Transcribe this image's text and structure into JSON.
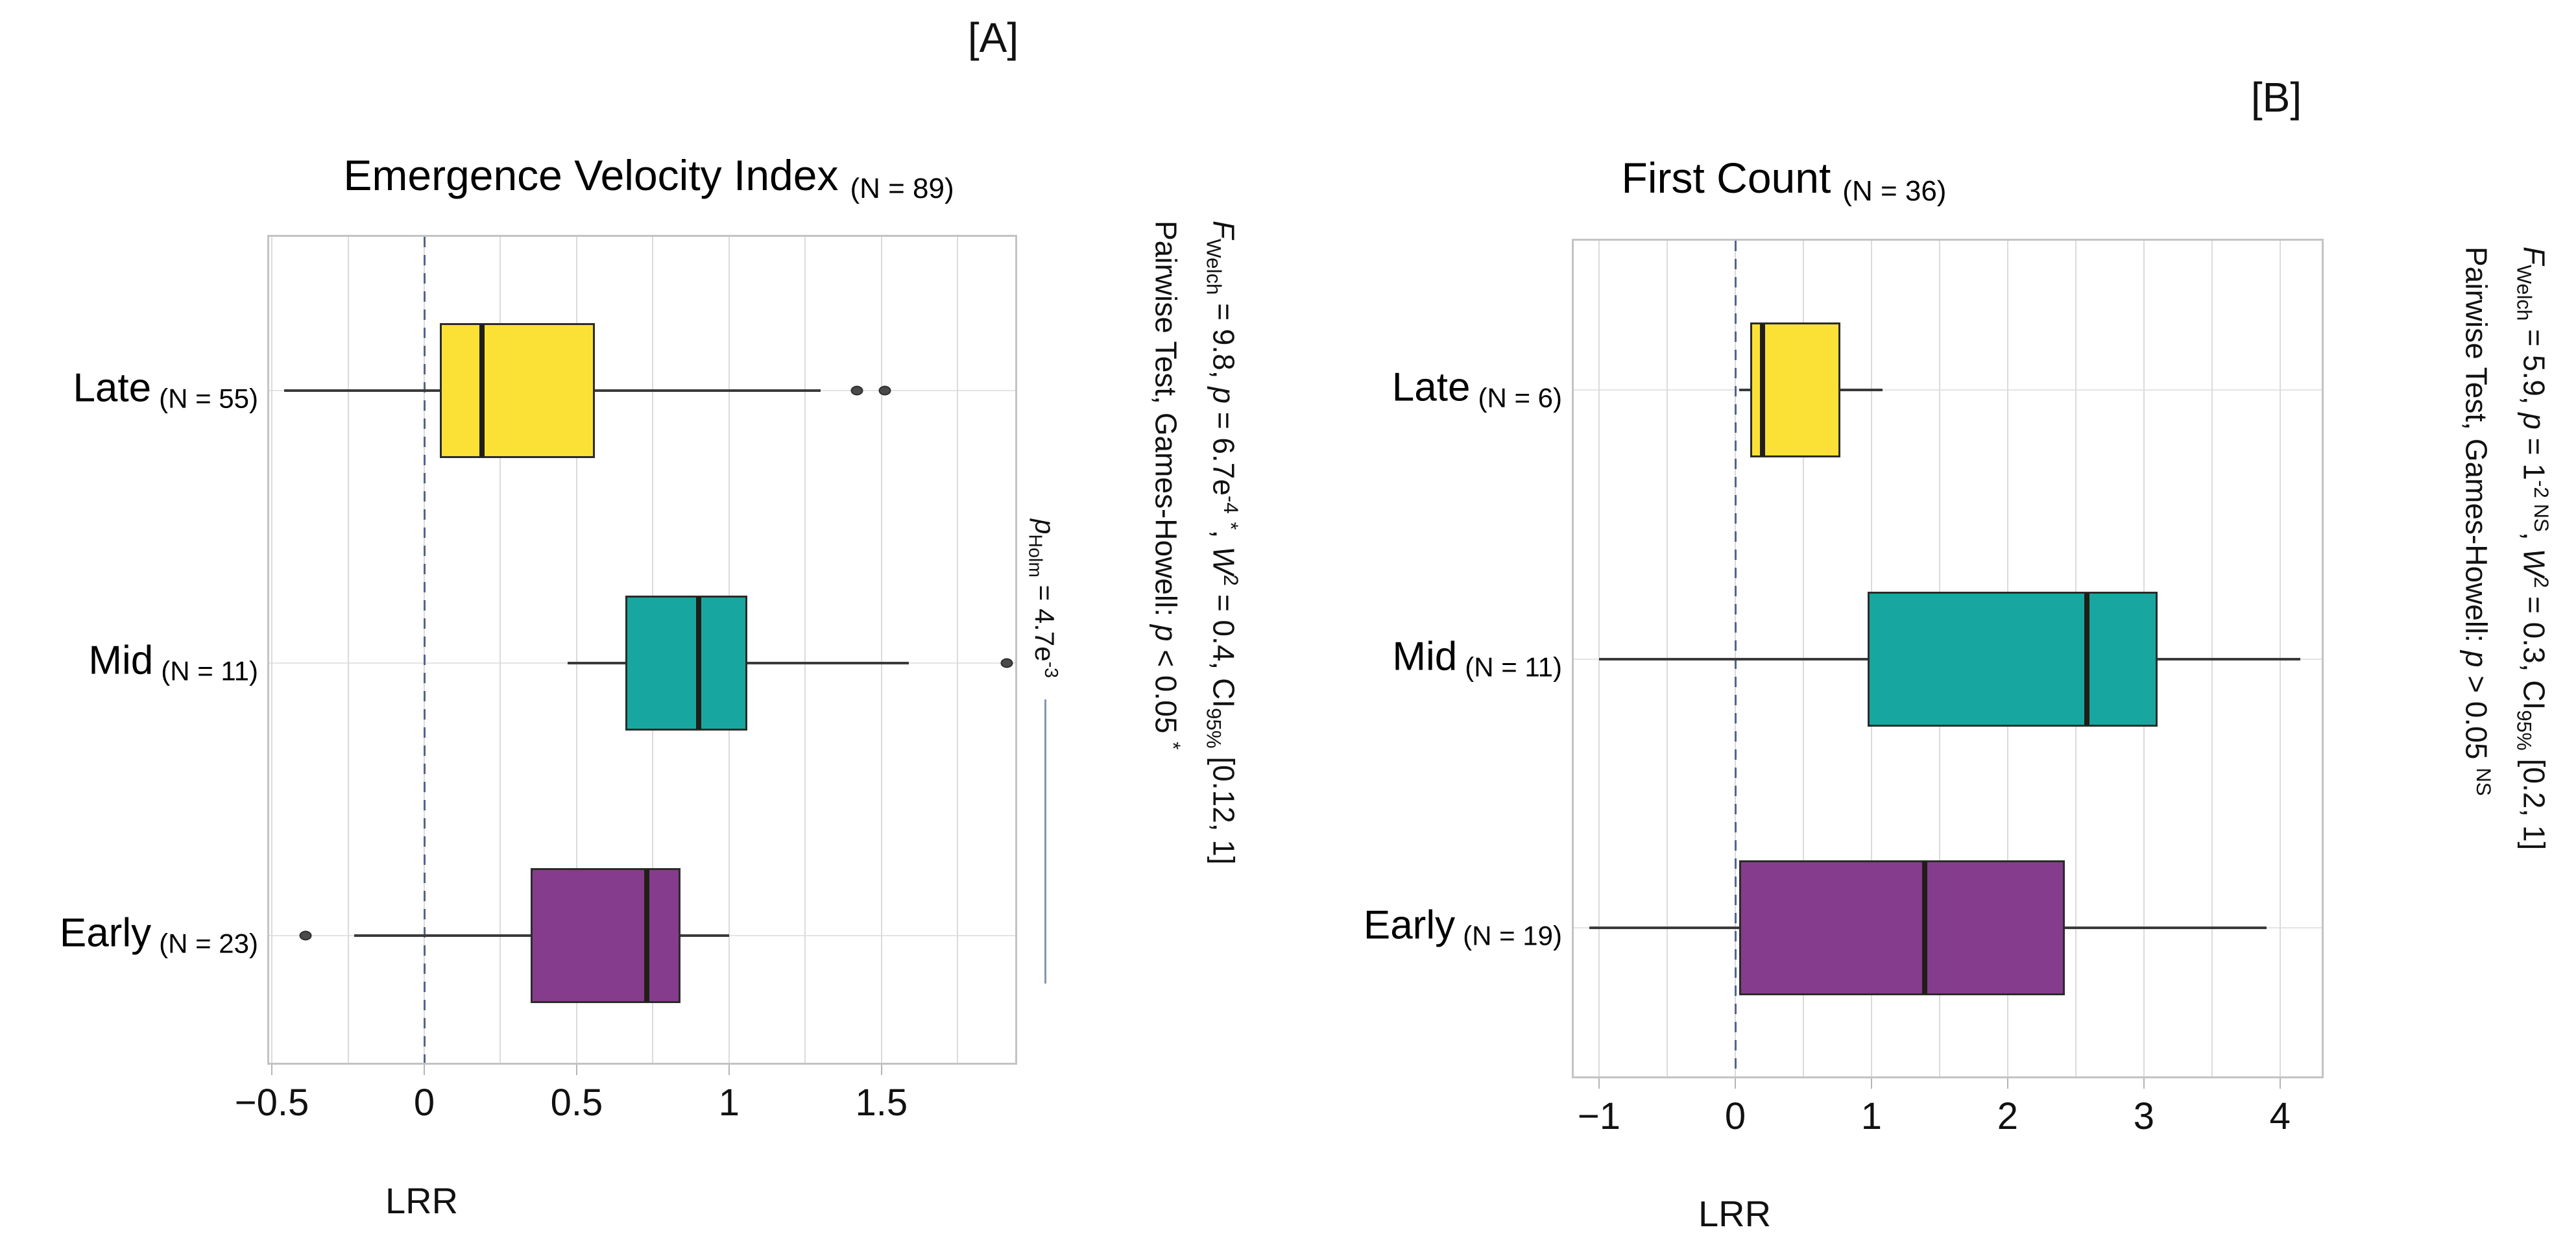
{
  "figure_colors": {
    "zero_line": "#54658a",
    "bracket_line": "#8796ad",
    "gridline": "#dbdbdb",
    "frame_border": "#c3c3c3",
    "whisker": "#3a3a3a",
    "outlier": "#4a4a4a"
  },
  "chart_data": [
    {
      "type": "box",
      "panel_tag": "[A]",
      "title": "Emergence Velocity Index",
      "subtitle": "(N = 89)",
      "xlabel": "LRR",
      "xlim": [
        -0.515,
        1.945
      ],
      "zero_line": 0,
      "grid_step": 0.25,
      "gridlines": [
        -0.5,
        -0.25,
        0,
        0.25,
        0.5,
        0.75,
        1,
        1.25,
        1.5,
        1.75
      ],
      "x_ticks": [
        {
          "v": -0.5,
          "label": "−0.5"
        },
        {
          "v": 0,
          "label": "0"
        },
        {
          "v": 0.5,
          "label": "0.5"
        },
        {
          "v": 1,
          "label": "1"
        },
        {
          "v": 1.5,
          "label": "1.5"
        }
      ],
      "categories": [
        "Late",
        "Mid",
        "Early"
      ],
      "groups": [
        {
          "name": "Late",
          "n_label": "(N = 55)",
          "color": "#FBE136",
          "min": -0.46,
          "q1": 0.05,
          "median": 0.19,
          "q3": 0.56,
          "max": 1.3,
          "outliers": [
            1.42,
            1.51
          ]
        },
        {
          "name": "Mid",
          "n_label": "(N = 11)",
          "color": "#17A7A0",
          "min": 0.47,
          "q1": 0.66,
          "median": 0.9,
          "q3": 1.06,
          "max": 1.59,
          "outliers": [
            1.91
          ]
        },
        {
          "name": "Early",
          "n_label": "(N = 23)",
          "color": "#863C8C",
          "min": -0.23,
          "q1": 0.35,
          "median": 0.73,
          "q3": 0.84,
          "max": 1.0,
          "outliers": [
            -0.39
          ]
        }
      ],
      "stats_line1": [
        {
          "t": "F",
          "s": "i"
        },
        {
          "t": "Welch",
          "s": "sub"
        },
        {
          "t": " = 9.8, "
        },
        {
          "t": "p",
          "s": "i"
        },
        {
          "t": " = 6.7e"
        },
        {
          "t": "-4",
          "s": "sup"
        },
        {
          "t": " "
        },
        {
          "t": "*",
          "s": "sup"
        },
        {
          "t": ", "
        },
        {
          "t": "W",
          "s": "i"
        },
        {
          "t": "2",
          "s": "sup"
        },
        {
          "t": " = 0.4, CI"
        },
        {
          "t": "95%",
          "s": "sub"
        },
        {
          "t": " [0.12, 1]"
        }
      ],
      "stats_line2": [
        {
          "t": "Pairwise Test, Games-Howell: "
        },
        {
          "t": "p",
          "s": "i"
        },
        {
          "t": " < 0.05 "
        },
        {
          "t": "*",
          "s": "sup"
        }
      ],
      "pairwise_annotation": {
        "label": [
          {
            "t": "p",
            "s": "i"
          },
          {
            "t": "Holm",
            "s": "sub"
          },
          {
            "t": " = 4.7e"
          },
          {
            "t": "-3",
            "s": "sup"
          }
        ],
        "compared_groups": [
          "Mid",
          "Early"
        ]
      }
    },
    {
      "type": "box",
      "panel_tag": "[B]",
      "title": "First Count",
      "subtitle": "(N = 36)",
      "xlabel": "LRR",
      "xlim": [
        -1.2,
        4.32
      ],
      "zero_line": 0,
      "grid_step": 0.5,
      "gridlines": [
        -1,
        -0.5,
        0,
        0.5,
        1,
        1.5,
        2,
        2.5,
        3,
        3.5,
        4
      ],
      "x_ticks": [
        {
          "v": -1,
          "label": "−1"
        },
        {
          "v": 0,
          "label": "0"
        },
        {
          "v": 1,
          "label": "1"
        },
        {
          "v": 2,
          "label": "2"
        },
        {
          "v": 3,
          "label": "3"
        },
        {
          "v": 4,
          "label": "4"
        }
      ],
      "categories": [
        "Late",
        "Mid",
        "Early"
      ],
      "groups": [
        {
          "name": "Late",
          "n_label": "(N = 6)",
          "color": "#FBE136",
          "min": 0.03,
          "q1": 0.11,
          "median": 0.2,
          "q3": 0.77,
          "max": 1.08,
          "outliers": []
        },
        {
          "name": "Mid",
          "n_label": "(N = 11)",
          "color": "#17A7A0",
          "min": -1.0,
          "q1": 0.97,
          "median": 2.58,
          "q3": 3.1,
          "max": 4.15,
          "outliers": []
        },
        {
          "name": "Early",
          "n_label": "(N = 19)",
          "color": "#863C8C",
          "min": -1.07,
          "q1": 0.03,
          "median": 1.39,
          "q3": 2.42,
          "max": 3.9,
          "outliers": []
        }
      ],
      "stats_line1": [
        {
          "t": "F",
          "s": "i"
        },
        {
          "t": "Welch",
          "s": "sub"
        },
        {
          "t": " = 5.9, "
        },
        {
          "t": "p",
          "s": "i"
        },
        {
          "t": " = 1"
        },
        {
          "t": "-2 NS",
          "s": "sup"
        },
        {
          "t": ", "
        },
        {
          "t": "W",
          "s": "i"
        },
        {
          "t": "2",
          "s": "sup"
        },
        {
          "t": " = 0.3, CI"
        },
        {
          "t": "95%",
          "s": "sub"
        },
        {
          "t": " [0.2, 1]"
        }
      ],
      "stats_line2": [
        {
          "t": "Pairwise Test, Games-Howell: "
        },
        {
          "t": "p",
          "s": "i"
        },
        {
          "t": " > 0.05 "
        },
        {
          "t": "NS",
          "s": "sup"
        }
      ]
    }
  ]
}
